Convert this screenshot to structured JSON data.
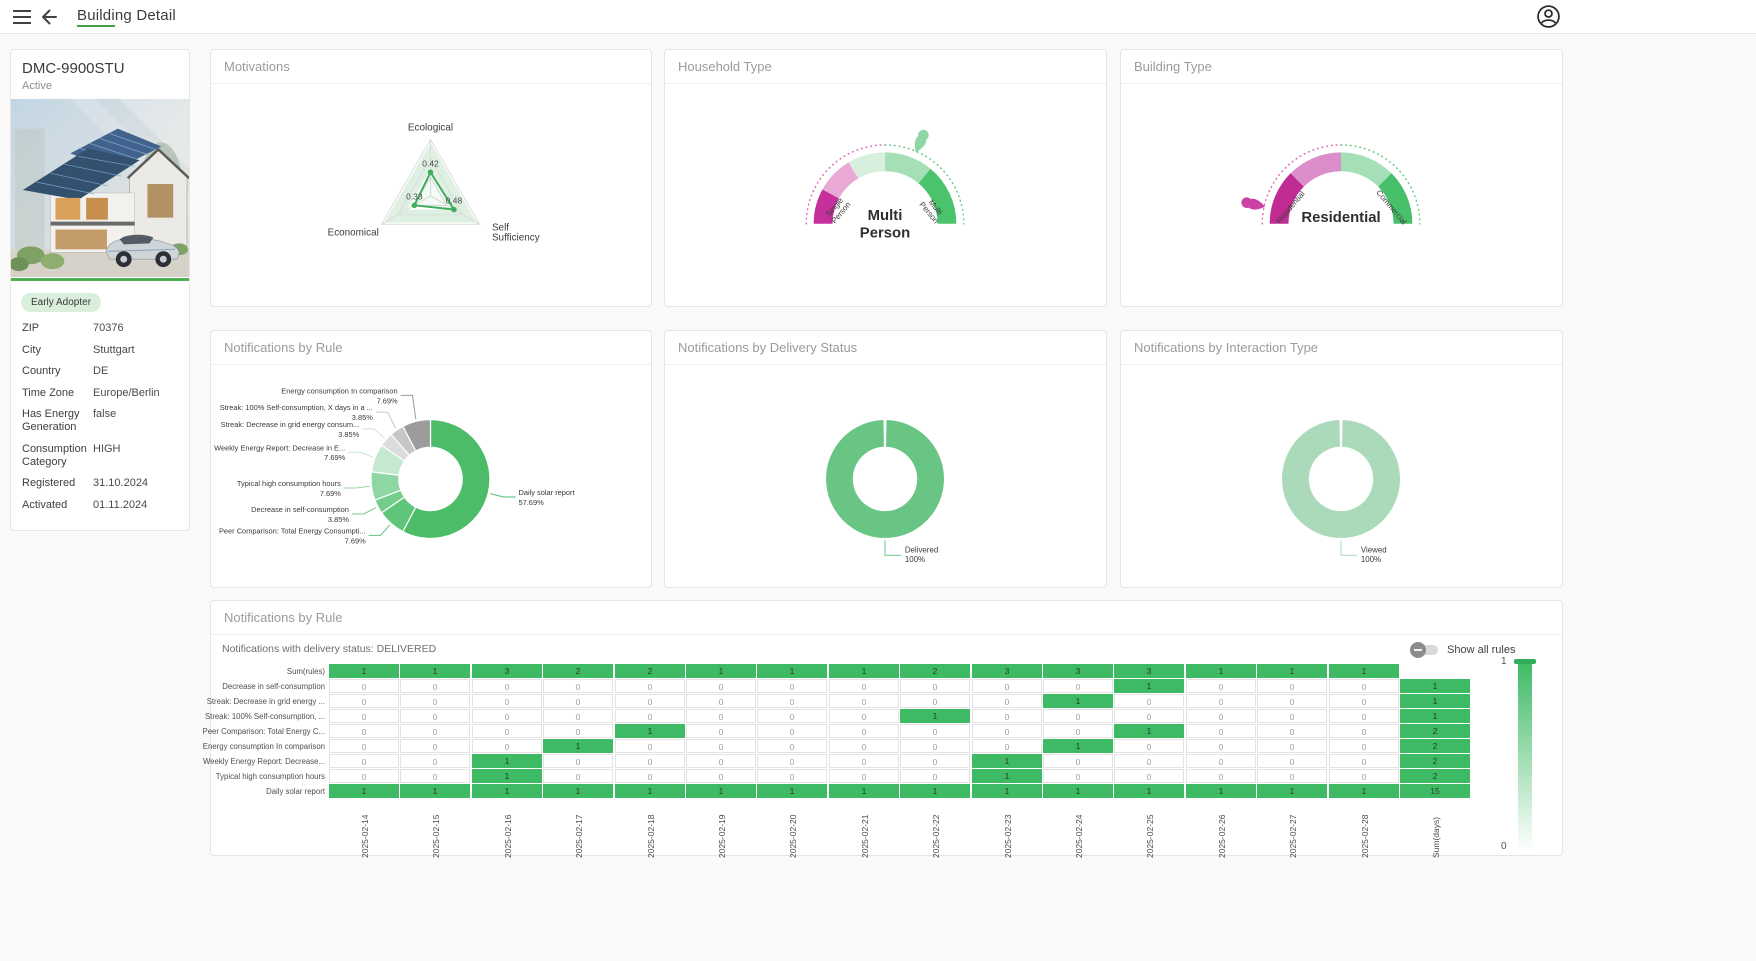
{
  "topbar": {
    "title": "Building Detail"
  },
  "building_card": {
    "id": "DMC-9900STU",
    "status": "Active",
    "badge": "Early Adopter",
    "details": [
      {
        "label": "ZIP",
        "value": "70376"
      },
      {
        "label": "City",
        "value": "Stuttgart"
      },
      {
        "label": "Country",
        "value": "DE"
      },
      {
        "label": "Time Zone",
        "value": "Europe/Berlin"
      },
      {
        "label": "Has Energy Generation",
        "value": "false"
      },
      {
        "label": "Consumption Category",
        "value": "HIGH"
      },
      {
        "label": "Registered",
        "value": "31.10.2024"
      },
      {
        "label": "Activated",
        "value": "01.11.2024"
      }
    ]
  },
  "panels": {
    "motivations": {
      "title": "Motivations"
    },
    "household": {
      "title": "Household Type"
    },
    "building_type": {
      "title": "Building Type"
    },
    "rule_donut": {
      "title": "Notifications by Rule"
    },
    "delivery_donut": {
      "title": "Notifications by Delivery Status"
    },
    "interaction_donut": {
      "title": "Notifications by Interaction Type"
    },
    "heatmap": {
      "title": "Notifications by Rule",
      "subtitle": "Notifications with delivery status: DELIVERED",
      "toggle_label": "Show all rules"
    }
  },
  "chart_data": [
    {
      "id": "motivations",
      "type": "radar",
      "indicators": [
        "Ecological",
        "Self Sufficiency",
        "Economical"
      ],
      "values": [
        0.42,
        0.48,
        0.33
      ],
      "max": 1,
      "line_color": "#3EAE5C",
      "band_color": "#DEF0E2",
      "grid_color": "#dcdcdc"
    },
    {
      "id": "household",
      "type": "gauge",
      "center_label": "Multi Person",
      "left_label": "Single Person",
      "right_label": "Multi Person",
      "segments": [
        {
          "end": 0.16,
          "color": "#C5309A"
        },
        {
          "end": 0.33,
          "color": "#EAA8D4"
        },
        {
          "end": 0.5,
          "color": "#D9EFDE"
        },
        {
          "end": 0.72,
          "color": "#A4DFB6"
        },
        {
          "end": 1.0,
          "color": "#4BC26C"
        }
      ],
      "marker": {
        "value": 0.63,
        "color": "#8FD6A4"
      },
      "dotted_left": "#E070BE",
      "dotted_right": "#6CCD88"
    },
    {
      "id": "building_type",
      "type": "gauge",
      "center_label": "Residential",
      "left_label": "Residential",
      "right_label": "Commercial",
      "segments": [
        {
          "end": 0.25,
          "color": "#C02C93"
        },
        {
          "end": 0.5,
          "color": "#DB8EC9"
        },
        {
          "end": 0.75,
          "color": "#A5DFB7"
        },
        {
          "end": 1.0,
          "color": "#48C06A"
        }
      ],
      "marker": {
        "value": 0.07,
        "color": "#CC41A4"
      },
      "dotted_left": "#E070BE",
      "dotted_right": "#6CCD88"
    },
    {
      "id": "rule_donut",
      "type": "pie",
      "slices": [
        {
          "name": "Daily solar report",
          "value": 57.69,
          "color": "#4CBC68"
        },
        {
          "name": "Peer Comparison: Total Energy Consumpti...",
          "value": 7.69,
          "color": "#5FC57A"
        },
        {
          "name": "Decrease in self-consumption",
          "value": 3.85,
          "color": "#74CD8B"
        },
        {
          "name": "Typical high consumption hours",
          "value": 7.69,
          "color": "#8FD7A2"
        },
        {
          "name": "Weekly Energy Report: Decrease in E...",
          "value": 7.69,
          "color": "#C4E9CE"
        },
        {
          "name": "Streak: Decrease in grid energy consum...",
          "value": 3.85,
          "color": "#DCDCDC"
        },
        {
          "name": "Streak: 100% Self-consumption, X days in a ...",
          "value": 3.85,
          "color": "#C6C6C6"
        },
        {
          "name": "Energy consumption In comparison",
          "value": 7.69,
          "color": "#9C9C9C"
        }
      ]
    },
    {
      "id": "delivery",
      "type": "pie",
      "slices": [
        {
          "name": "Delivered",
          "value": 100,
          "color": "#69C584"
        }
      ]
    },
    {
      "id": "interaction",
      "type": "pie",
      "slices": [
        {
          "name": "Viewed",
          "value": 100,
          "color": "#ABDABA"
        }
      ]
    },
    {
      "id": "notifications_heatmap",
      "type": "heatmap",
      "cell_color": "#3EBA64",
      "legend": {
        "max": "1",
        "min": "0"
      },
      "columns": [
        "2025-02-14",
        "2025-02-15",
        "2025-02-16",
        "2025-02-17",
        "2025-02-18",
        "2025-02-19",
        "2025-02-20",
        "2025-02-21",
        "2025-02-22",
        "2025-02-23",
        "2025-02-24",
        "2025-02-25",
        "2025-02-26",
        "2025-02-27",
        "2025-02-28",
        "Sum(days)"
      ],
      "rows": [
        "Sum(rules)",
        "Decrease in self-consumption",
        "Streak: Decrease in grid energy ...",
        "Streak: 100% Self-consumption, ...",
        "Peer Comparison: Total Energy C...",
        "Energy consumption In comparison",
        "Weekly Energy Report: Decrease...",
        "Typical high consumption hours",
        "Daily solar report"
      ],
      "cells": [
        [
          1,
          1,
          3,
          2,
          2,
          1,
          1,
          1,
          2,
          3,
          3,
          3,
          1,
          1,
          1,
          null
        ],
        [
          0,
          0,
          0,
          0,
          0,
          0,
          0,
          0,
          0,
          0,
          0,
          1,
          0,
          0,
          0,
          1
        ],
        [
          0,
          0,
          0,
          0,
          0,
          0,
          0,
          0,
          0,
          0,
          1,
          0,
          0,
          0,
          0,
          1
        ],
        [
          0,
          0,
          0,
          0,
          0,
          0,
          0,
          0,
          1,
          0,
          0,
          0,
          0,
          0,
          0,
          1
        ],
        [
          0,
          0,
          0,
          0,
          1,
          0,
          0,
          0,
          0,
          0,
          0,
          1,
          0,
          0,
          0,
          2
        ],
        [
          0,
          0,
          0,
          1,
          0,
          0,
          0,
          0,
          0,
          0,
          1,
          0,
          0,
          0,
          0,
          2
        ],
        [
          0,
          0,
          1,
          0,
          0,
          0,
          0,
          0,
          0,
          1,
          0,
          0,
          0,
          0,
          0,
          2
        ],
        [
          0,
          0,
          1,
          0,
          0,
          0,
          0,
          0,
          0,
          1,
          0,
          0,
          0,
          0,
          0,
          2
        ],
        [
          1,
          1,
          1,
          1,
          1,
          1,
          1,
          1,
          1,
          1,
          1,
          1,
          1,
          1,
          1,
          15
        ]
      ]
    }
  ]
}
